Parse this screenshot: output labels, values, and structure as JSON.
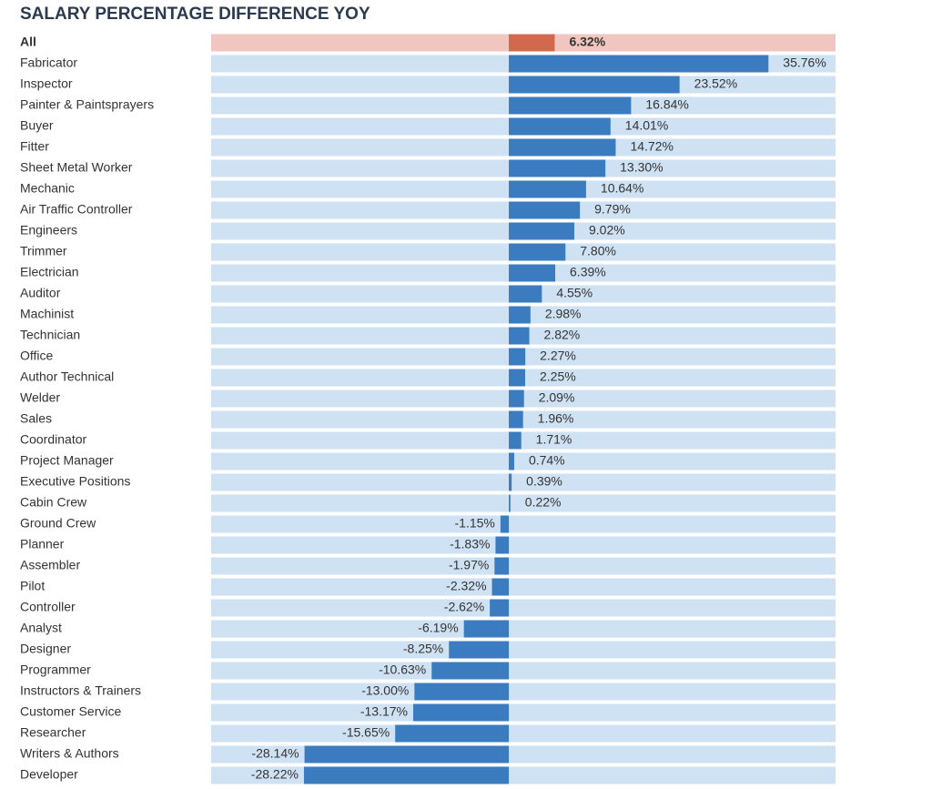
{
  "chart_data": {
    "type": "bar",
    "orientation": "horizontal",
    "title": "SALARY PERCENTAGE DIFFERENCE YOY",
    "categories": [
      "All",
      "Fabricator",
      "Inspector",
      "Painter & Paintsprayers",
      "Buyer",
      "Fitter",
      "Sheet Metal Worker",
      "Mechanic",
      "Air Traffic Controller",
      "Engineers",
      "Trimmer",
      "Electrician",
      "Auditor",
      "Machinist",
      "Technician",
      "Office",
      "Author Technical",
      "Welder",
      "Sales",
      "Coordinator",
      "Project Manager",
      "Executive Positions",
      "Cabin Crew",
      "Ground Crew",
      "Planner",
      "Assembler",
      "Pilot",
      "Controller",
      "Analyst",
      "Designer",
      "Programmer",
      "Instructors & Trainers",
      "Customer Service",
      "Researcher",
      "Writers & Authors",
      "Developer"
    ],
    "values": [
      6.32,
      35.76,
      23.52,
      16.84,
      14.01,
      14.72,
      13.3,
      10.64,
      9.79,
      9.02,
      7.8,
      6.39,
      4.55,
      2.98,
      2.82,
      2.27,
      2.25,
      2.09,
      1.96,
      1.71,
      0.74,
      0.39,
      0.22,
      -1.15,
      -1.83,
      -1.97,
      -2.32,
      -2.62,
      -6.19,
      -8.25,
      -10.63,
      -13.0,
      -13.17,
      -15.65,
      -28.14,
      -28.22
    ],
    "value_labels": [
      "6.32%",
      "35.76%",
      "23.52%",
      "16.84%",
      "14.01%",
      "14.72%",
      "13.30%",
      "10.64%",
      "9.79%",
      "9.02%",
      "7.80%",
      "6.39%",
      "4.55%",
      "2.98%",
      "2.82%",
      "2.27%",
      "2.25%",
      "2.09%",
      "1.96%",
      "1.71%",
      "0.74%",
      "0.39%",
      "0.22%",
      "-1.15%",
      "-1.83%",
      "-1.97%",
      "-2.32%",
      "-2.62%",
      "-6.19%",
      "-8.25%",
      "-10.63%",
      "-13.00%",
      "-13.17%",
      "-15.65%",
      "-28.14%",
      "-28.22%"
    ],
    "color": "#3b7bbf",
    "highlight": 0,
    "highlight_color": "#d0694d",
    "xlim": [
      -41,
      45
    ]
  }
}
